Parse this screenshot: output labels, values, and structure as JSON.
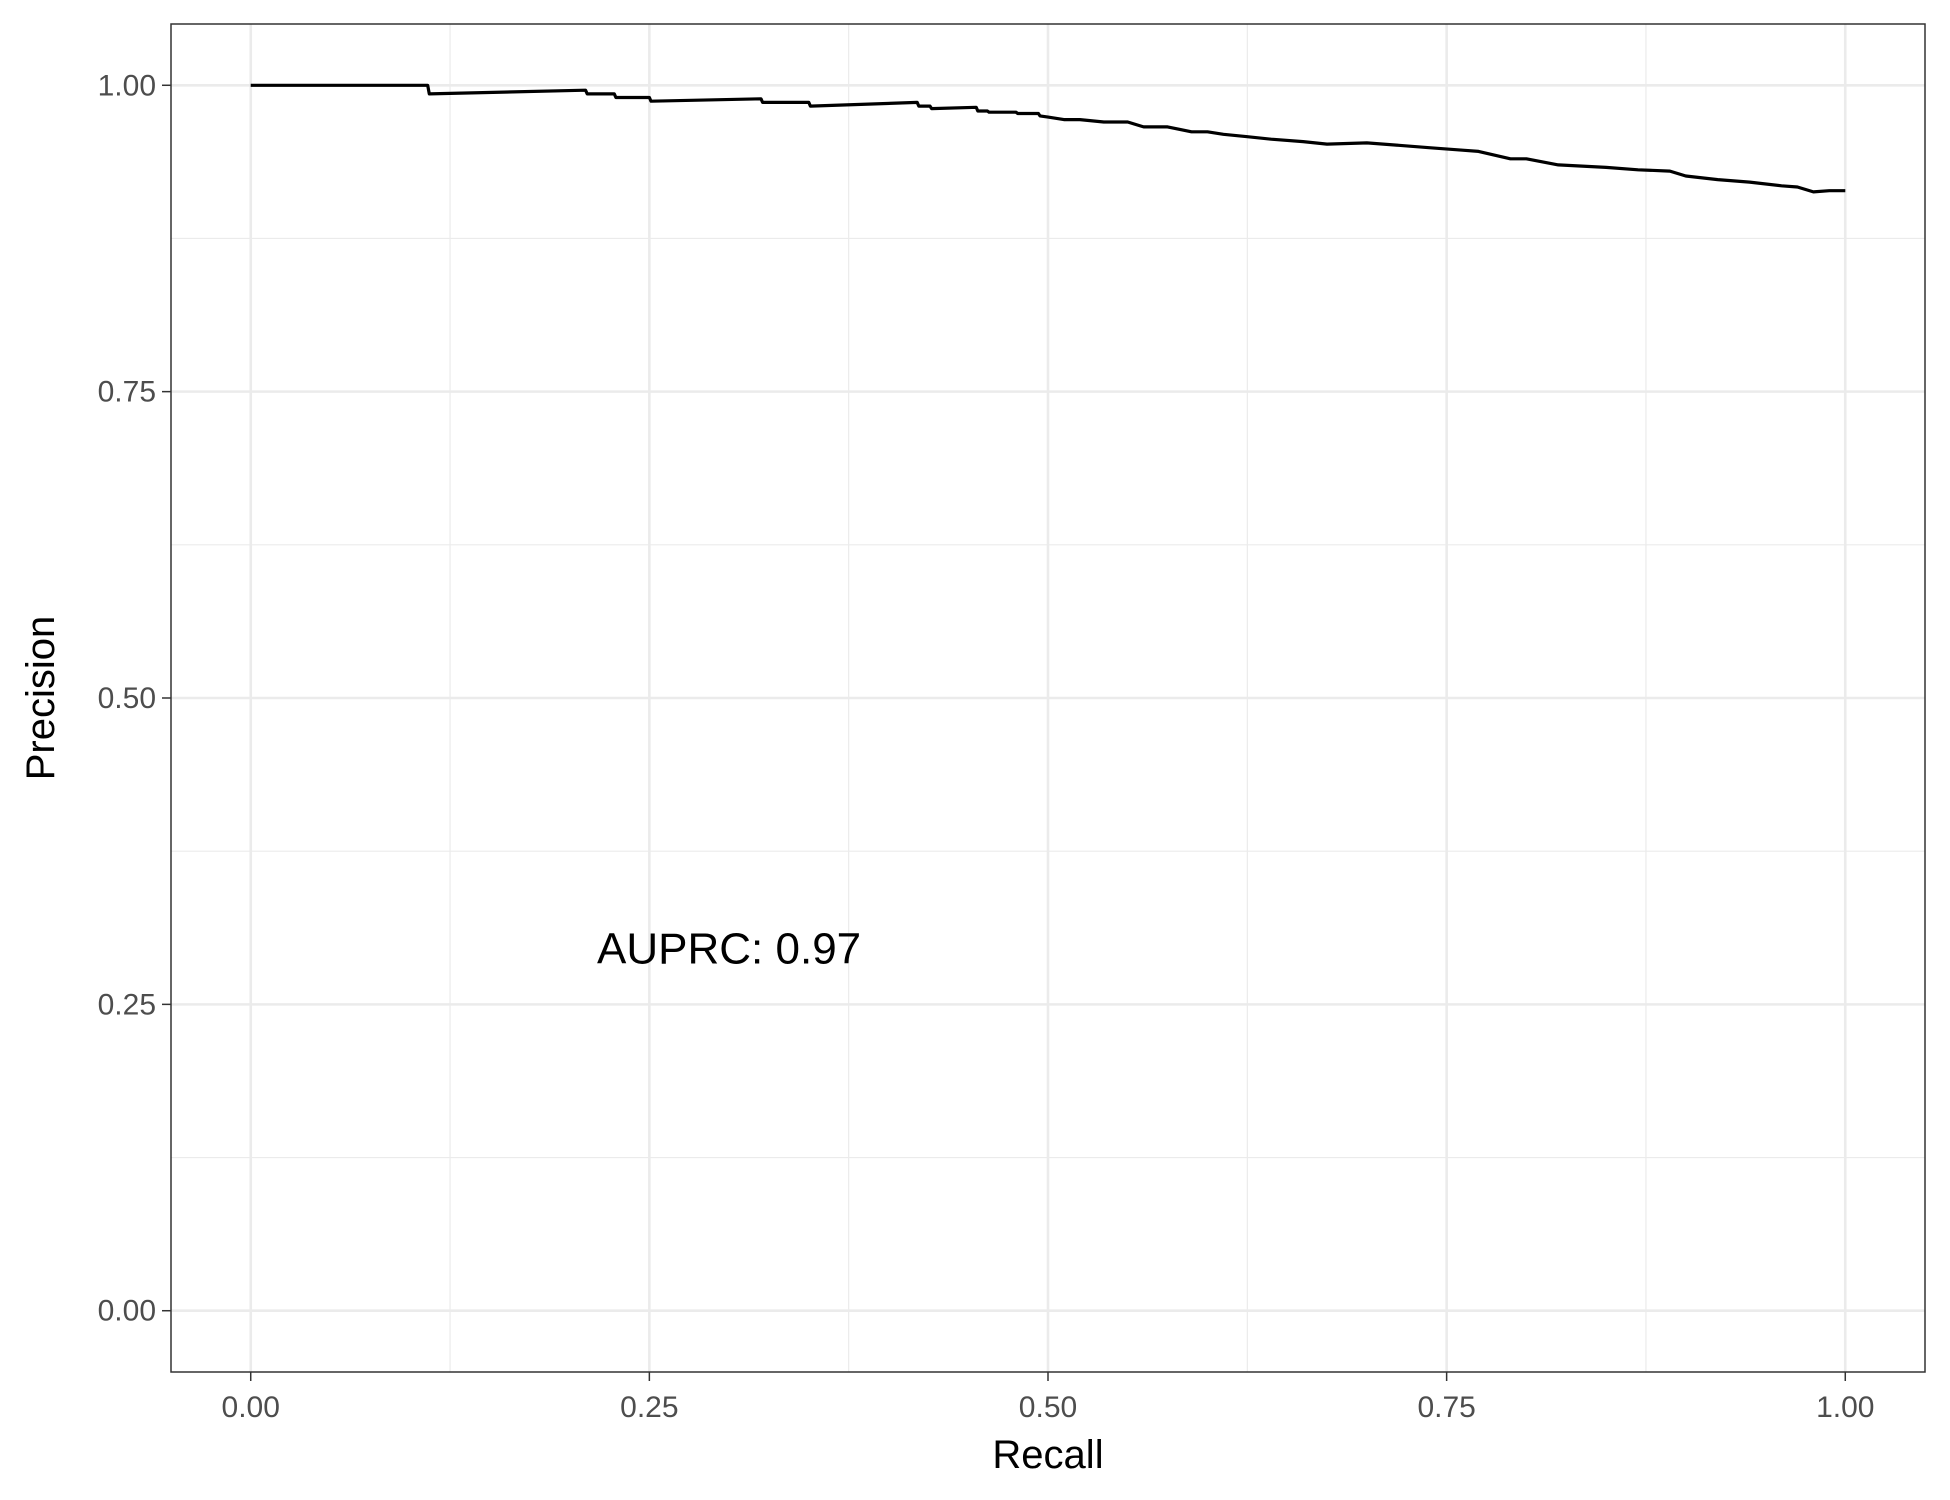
{
  "chart_data": {
    "type": "line",
    "title": "",
    "xlabel": "Recall",
    "ylabel": "Precision",
    "xlim": [
      -0.05,
      1.05
    ],
    "ylim": [
      -0.05,
      1.05
    ],
    "grid": true,
    "x_ticks": [
      "0.00",
      "0.25",
      "0.50",
      "0.75",
      "1.00"
    ],
    "y_ticks": [
      "0.00",
      "0.25",
      "0.50",
      "0.75",
      "1.00"
    ],
    "annotation": {
      "text": "AUPRC: 0.97",
      "x": 0.3,
      "y": 0.295
    },
    "series": [
      {
        "color": "#000000",
        "x": [
          0.0,
          0.111,
          0.112,
          0.21,
          0.211,
          0.228,
          0.229,
          0.25,
          0.251,
          0.32,
          0.321,
          0.35,
          0.351,
          0.418,
          0.419,
          0.426,
          0.427,
          0.455,
          0.456,
          0.462,
          0.463,
          0.48,
          0.481,
          0.494,
          0.495,
          0.5,
          0.51,
          0.52,
          0.535,
          0.55,
          0.56,
          0.575,
          0.59,
          0.6,
          0.61,
          0.625,
          0.64,
          0.66,
          0.675,
          0.7,
          0.72,
          0.74,
          0.76,
          0.77,
          0.79,
          0.8,
          0.82,
          0.85,
          0.87,
          0.89,
          0.9,
          0.92,
          0.94,
          0.96,
          0.97,
          0.98,
          0.99,
          1.0
        ],
        "y": [
          1.0,
          1.0,
          0.993,
          0.996,
          0.993,
          0.993,
          0.99,
          0.99,
          0.987,
          0.989,
          0.986,
          0.986,
          0.983,
          0.986,
          0.983,
          0.983,
          0.981,
          0.982,
          0.979,
          0.979,
          0.978,
          0.978,
          0.977,
          0.977,
          0.975,
          0.974,
          0.972,
          0.972,
          0.97,
          0.97,
          0.966,
          0.966,
          0.962,
          0.962,
          0.96,
          0.958,
          0.956,
          0.954,
          0.952,
          0.953,
          0.951,
          0.949,
          0.947,
          0.946,
          0.94,
          0.94,
          0.935,
          0.933,
          0.931,
          0.93,
          0.926,
          0.923,
          0.921,
          0.918,
          0.917,
          0.913,
          0.914,
          0.914
        ]
      }
    ]
  }
}
